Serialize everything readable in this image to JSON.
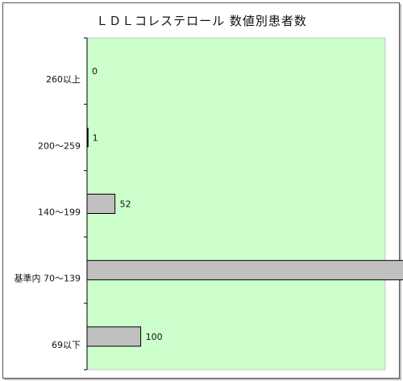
{
  "chart_data": {
    "type": "bar",
    "orientation": "horizontal",
    "title": "ＬＤＬコレステロール 数値別患者数",
    "xlabel": "",
    "ylabel": "",
    "categories": [
      "260以上",
      "200～259",
      "140～199",
      "基準内 70～139",
      "69以下"
    ],
    "values": [
      0,
      1,
      52,
      627,
      100
    ],
    "xlim": [
      0,
      700
    ],
    "grid": false,
    "legend": "none",
    "colors": {
      "plot_background": "#ccffcc",
      "bar_fill": "#c0c0c0",
      "bar_stroke": "#000000",
      "axis": "#000000"
    }
  }
}
